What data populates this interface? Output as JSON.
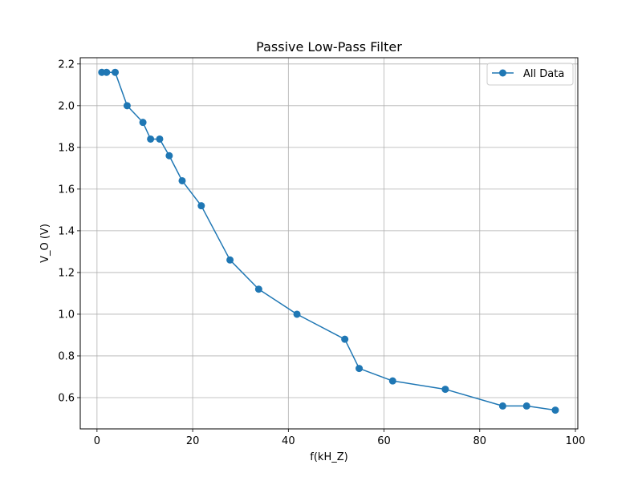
{
  "chart_data": {
    "type": "line",
    "title": "Passive Low-Pass Filter",
    "xlabel": "f(kH_Z)",
    "ylabel": "V_O (V)",
    "xlim": [
      -3.5,
      100.5
    ],
    "ylim": [
      0.45,
      2.23
    ],
    "xticks": [
      0,
      20,
      40,
      60,
      80,
      100
    ],
    "xtick_labels": [
      "0",
      "20",
      "40",
      "60",
      "80",
      "100"
    ],
    "yticks": [
      0.6,
      0.8,
      1.0,
      1.2,
      1.4,
      1.6,
      1.8,
      2.0,
      2.2
    ],
    "ytick_labels": [
      "0.6",
      "0.8",
      "1.0",
      "1.2",
      "1.4",
      "1.6",
      "1.8",
      "2.0",
      "2.2"
    ],
    "grid": true,
    "legend_position": "top-right",
    "series": [
      {
        "name": "All Data",
        "color": "#1f77b4",
        "marker": "circle",
        "x": [
          1,
          2,
          3.8,
          6.3,
          9.6,
          11.2,
          13.1,
          15.1,
          17.8,
          21.8,
          27.8,
          33.8,
          41.8,
          51.8,
          54.8,
          61.8,
          72.8,
          84.8,
          89.8,
          95.8
        ],
        "y": [
          2.16,
          2.16,
          2.16,
          2.0,
          1.92,
          1.84,
          1.84,
          1.76,
          1.64,
          1.52,
          1.26,
          1.12,
          1.0,
          0.88,
          0.74,
          0.68,
          0.64,
          0.56,
          0.56,
          0.54
        ]
      }
    ]
  }
}
